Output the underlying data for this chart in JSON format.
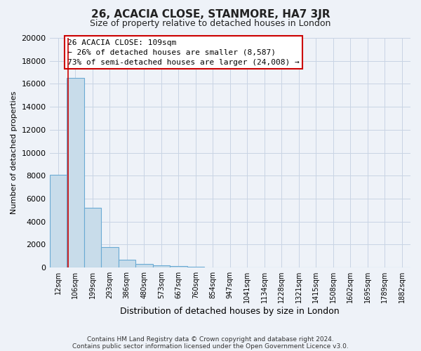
{
  "title": "26, ACACIA CLOSE, STANMORE, HA7 3JR",
  "subtitle": "Size of property relative to detached houses in London",
  "xlabel": "Distribution of detached houses by size in London",
  "ylabel": "Number of detached properties",
  "bar_color": "#c8dcea",
  "bar_edge_color": "#6aaad4",
  "background_color": "#eef2f8",
  "grid_color": "#c8d4e4",
  "annotation_box_color": "white",
  "annotation_box_edge_color": "#cc0000",
  "vline_color": "#cc0000",
  "vline_x": 1.1,
  "categories": [
    "12sqm",
    "106sqm",
    "199sqm",
    "293sqm",
    "386sqm",
    "480sqm",
    "573sqm",
    "667sqm",
    "760sqm",
    "854sqm",
    "947sqm",
    "1041sqm",
    "1134sqm",
    "1228sqm",
    "1321sqm",
    "1415sqm",
    "1508sqm",
    "1602sqm",
    "1695sqm",
    "1789sqm",
    "1882sqm"
  ],
  "values": [
    8100,
    16500,
    5200,
    1750,
    700,
    300,
    200,
    100,
    50,
    30,
    20,
    15,
    10,
    8,
    6,
    5,
    4,
    3,
    2,
    2,
    1
  ],
  "ylim": [
    0,
    20000
  ],
  "yticks": [
    0,
    2000,
    4000,
    6000,
    8000,
    10000,
    12000,
    14000,
    16000,
    18000,
    20000
  ],
  "annotation_title": "26 ACACIA CLOSE: 109sqm",
  "annotation_line1": "← 26% of detached houses are smaller (8,587)",
  "annotation_line2": "73% of semi-detached houses are larger (24,008) →",
  "footer_line1": "Contains HM Land Registry data © Crown copyright and database right 2024.",
  "footer_line2": "Contains public sector information licensed under the Open Government Licence v3.0."
}
